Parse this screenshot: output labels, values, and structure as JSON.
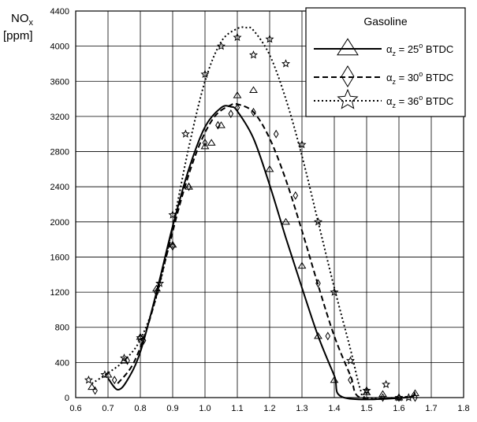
{
  "chart_data": {
    "type": "scatter",
    "title": "",
    "ylabel_main": "NO",
    "ylabel_sub": "x",
    "ylabel_unit": "[ppm]",
    "xlabel": "",
    "xlim": [
      0.6,
      1.8
    ],
    "ylim": [
      0,
      4400
    ],
    "x_ticks": [
      0.6,
      0.7,
      0.8,
      0.9,
      1.0,
      1.1,
      1.2,
      1.3,
      1.4,
      1.5,
      1.6,
      1.7,
      1.8
    ],
    "x_tick_labels": [
      "0.6",
      "0.7",
      "0.8",
      "0.9",
      "1.0",
      "1.1",
      "1.2",
      "1.3",
      "1.4",
      "1.5",
      "1.6",
      "1.7",
      "1.8"
    ],
    "y_ticks": [
      0,
      400,
      800,
      1200,
      1600,
      2000,
      2400,
      2800,
      3200,
      3600,
      4000,
      4400
    ],
    "y_tick_labels": [
      "0",
      "400",
      "800",
      "1200",
      "1600",
      "2000",
      "2400",
      "2800",
      "3200",
      "3600",
      "4000",
      "4400"
    ],
    "grid": true,
    "legend": {
      "title": "Gasoline",
      "placement": "top-right",
      "entries": [
        {
          "prefix": "α",
          "sub": "z",
          "mid": " = 25",
          "sup": "o",
          "suffix": " BTDC",
          "marker": "triangle",
          "line": "solid"
        },
        {
          "prefix": "α",
          "sub": "z",
          "mid": " = 30",
          "sup": "o",
          "suffix": " BTDC",
          "marker": "diamond",
          "line": "dashed"
        },
        {
          "prefix": "α",
          "sub": "z",
          "mid": " = 36",
          "sup": "o",
          "suffix": " BTDC",
          "marker": "star",
          "line": "dotted"
        }
      ]
    },
    "series": [
      {
        "marker": "triangle",
        "line": "solid",
        "points": [
          [
            0.65,
            120
          ],
          [
            0.7,
            260
          ],
          [
            0.75,
            420
          ],
          [
            0.8,
            690
          ],
          [
            0.85,
            1240
          ],
          [
            0.9,
            1740
          ],
          [
            0.95,
            2400
          ],
          [
            1.0,
            2860
          ],
          [
            1.02,
            2900
          ],
          [
            1.05,
            3100
          ],
          [
            1.1,
            3440
          ],
          [
            1.15,
            3500
          ],
          [
            1.2,
            2600
          ],
          [
            1.25,
            2000
          ],
          [
            1.3,
            1500
          ],
          [
            1.35,
            700
          ],
          [
            1.4,
            200
          ],
          [
            1.5,
            60
          ],
          [
            1.55,
            40
          ],
          [
            1.6,
            0
          ],
          [
            1.65,
            50
          ]
        ],
        "fit": [
          [
            0.7,
            220
          ],
          [
            0.73,
            90
          ],
          [
            0.76,
            200
          ],
          [
            0.8,
            520
          ],
          [
            0.85,
            1200
          ],
          [
            0.9,
            1950
          ],
          [
            0.95,
            2600
          ],
          [
            1.0,
            3080
          ],
          [
            1.05,
            3300
          ],
          [
            1.08,
            3310
          ],
          [
            1.1,
            3260
          ],
          [
            1.15,
            2950
          ],
          [
            1.2,
            2420
          ],
          [
            1.25,
            1820
          ],
          [
            1.3,
            1250
          ],
          [
            1.35,
            700
          ],
          [
            1.4,
            250
          ],
          [
            1.43,
            0
          ],
          [
            1.62,
            0
          ],
          [
            1.65,
            60
          ]
        ]
      },
      {
        "marker": "diamond",
        "line": "dashed",
        "points": [
          [
            0.66,
            80
          ],
          [
            0.72,
            200
          ],
          [
            0.76,
            420
          ],
          [
            0.81,
            650
          ],
          [
            0.85,
            1200
          ],
          [
            0.9,
            1720
          ],
          [
            0.95,
            2400
          ],
          [
            1.0,
            2900
          ],
          [
            1.04,
            3100
          ],
          [
            1.08,
            3230
          ],
          [
            1.1,
            3300
          ],
          [
            1.15,
            3250
          ],
          [
            1.22,
            3000
          ],
          [
            1.28,
            2300
          ],
          [
            1.35,
            1300
          ],
          [
            1.38,
            700
          ],
          [
            1.45,
            200
          ],
          [
            1.5,
            80
          ],
          [
            1.55,
            0
          ],
          [
            1.6,
            0
          ],
          [
            1.65,
            0
          ]
        ],
        "fit": [
          [
            0.73,
            160
          ],
          [
            0.78,
            400
          ],
          [
            0.83,
            900
          ],
          [
            0.88,
            1600
          ],
          [
            0.93,
            2300
          ],
          [
            0.98,
            2850
          ],
          [
            1.03,
            3200
          ],
          [
            1.08,
            3330
          ],
          [
            1.1,
            3340
          ],
          [
            1.15,
            3250
          ],
          [
            1.2,
            2950
          ],
          [
            1.25,
            2480
          ],
          [
            1.3,
            1900
          ],
          [
            1.35,
            1280
          ],
          [
            1.4,
            700
          ],
          [
            1.45,
            250
          ],
          [
            1.48,
            0
          ],
          [
            1.6,
            0
          ]
        ]
      },
      {
        "marker": "star",
        "line": "dotted",
        "points": [
          [
            0.64,
            200
          ],
          [
            0.69,
            260
          ],
          [
            0.75,
            450
          ],
          [
            0.8,
            680
          ],
          [
            0.86,
            1300
          ],
          [
            0.9,
            2080
          ],
          [
            0.94,
            3000
          ],
          [
            1.0,
            3680
          ],
          [
            1.05,
            4000
          ],
          [
            1.1,
            4100
          ],
          [
            1.15,
            3900
          ],
          [
            1.2,
            4080
          ],
          [
            1.25,
            3800
          ],
          [
            1.3,
            2880
          ],
          [
            1.35,
            2000
          ],
          [
            1.4,
            1200
          ],
          [
            1.45,
            420
          ],
          [
            1.5,
            80
          ],
          [
            1.56,
            150
          ],
          [
            1.6,
            0
          ],
          [
            1.63,
            0
          ]
        ],
        "fit": [
          [
            0.65,
            160
          ],
          [
            0.7,
            280
          ],
          [
            0.75,
            420
          ],
          [
            0.8,
            660
          ],
          [
            0.85,
            1150
          ],
          [
            0.9,
            1950
          ],
          [
            0.95,
            2850
          ],
          [
            1.0,
            3600
          ],
          [
            1.05,
            4050
          ],
          [
            1.1,
            4200
          ],
          [
            1.13,
            4210
          ],
          [
            1.15,
            4180
          ],
          [
            1.2,
            3900
          ],
          [
            1.25,
            3400
          ],
          [
            1.3,
            2750
          ],
          [
            1.35,
            2000
          ],
          [
            1.4,
            1250
          ],
          [
            1.45,
            550
          ],
          [
            1.48,
            100
          ],
          [
            1.5,
            0
          ],
          [
            1.6,
            0
          ]
        ]
      }
    ]
  }
}
